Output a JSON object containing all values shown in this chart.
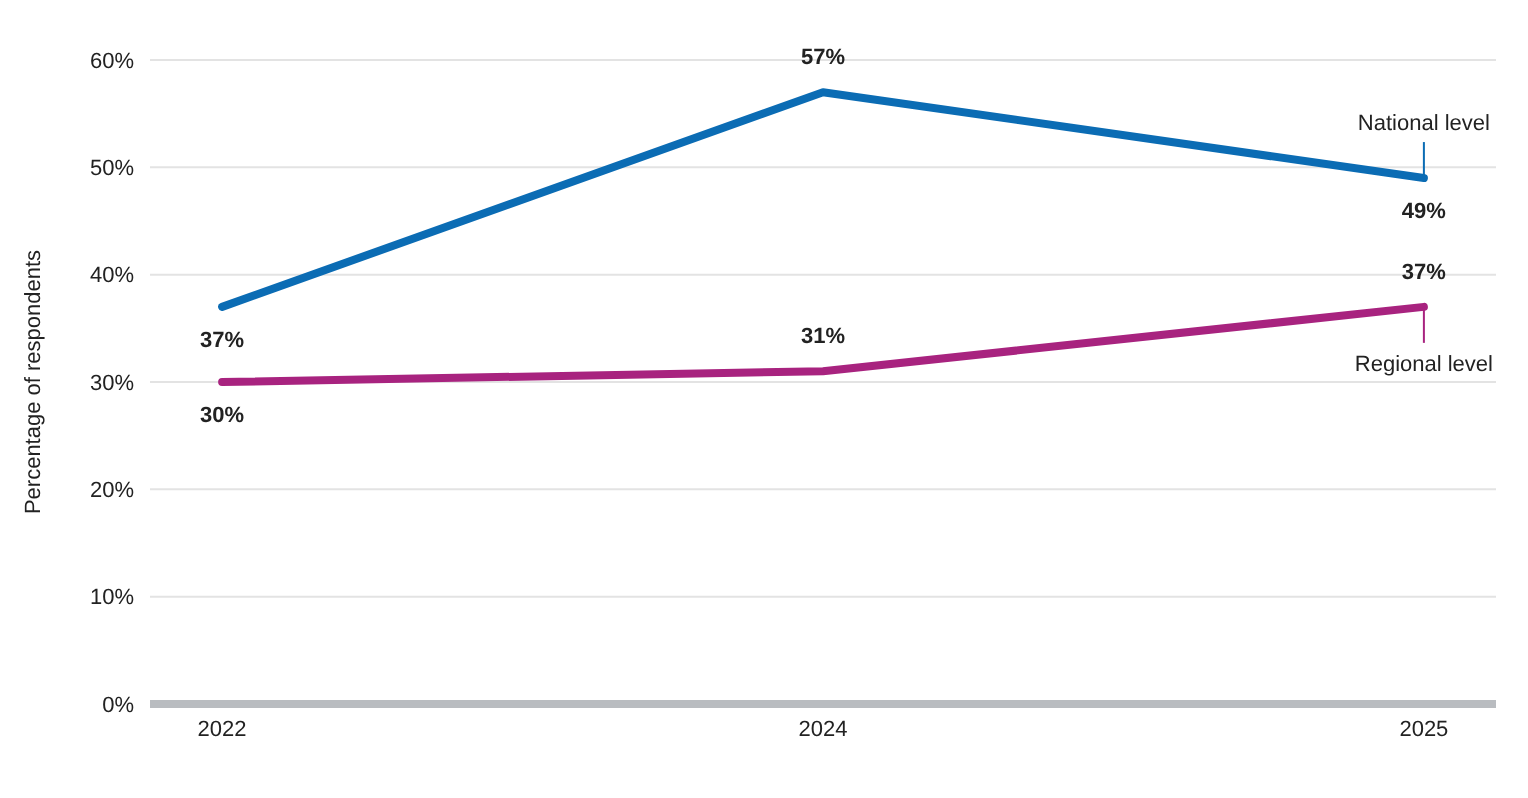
{
  "chart_data": {
    "type": "line",
    "ylabel": "Percentage of respondents",
    "categories": [
      "2022",
      "2024",
      "2025"
    ],
    "series": [
      {
        "name": "National level",
        "color": "#0b6cb4",
        "values": [
          37,
          57,
          49
        ],
        "value_labels": [
          "37%",
          "57%",
          "49%"
        ]
      },
      {
        "name": "Regional level",
        "color": "#a8237f",
        "values": [
          30,
          31,
          37
        ],
        "value_labels": [
          "30%",
          "31%",
          "37%"
        ]
      }
    ],
    "ylim": [
      0,
      60
    ],
    "yticks": [
      {
        "value": 0,
        "label": "0%"
      },
      {
        "value": 10,
        "label": "10%"
      },
      {
        "value": 20,
        "label": "20%"
      },
      {
        "value": 30,
        "label": "30%"
      },
      {
        "value": 40,
        "label": "40%"
      },
      {
        "value": 50,
        "label": "50%"
      },
      {
        "value": 60,
        "label": "60%"
      }
    ],
    "grid": "y",
    "legend": "right",
    "marker": "none",
    "line_style": "solid"
  }
}
